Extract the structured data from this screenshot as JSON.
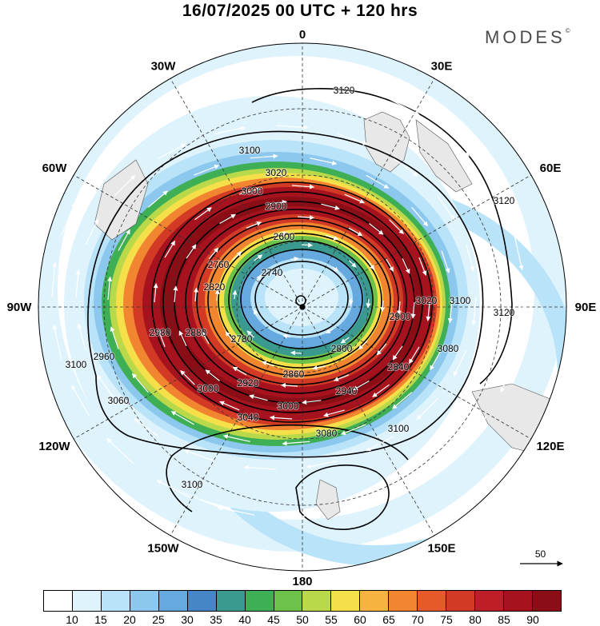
{
  "title": "16/07/2025  00 UTC  + 120 hrs",
  "brand": "MODES",
  "brand_mark": "©",
  "longitude_labels": [
    {
      "text": "0",
      "lon": 0
    },
    {
      "text": "30E",
      "lon": 30
    },
    {
      "text": "60E",
      "lon": 60
    },
    {
      "text": "90E",
      "lon": 90
    },
    {
      "text": "120E",
      "lon": 120
    },
    {
      "text": "150E",
      "lon": 150
    },
    {
      "text": "180",
      "lon": 180
    },
    {
      "text": "150W",
      "lon": -150
    },
    {
      "text": "120W",
      "lon": -120
    },
    {
      "text": "90W",
      "lon": -90
    },
    {
      "text": "60W",
      "lon": -60
    },
    {
      "text": "30W",
      "lon": -30
    }
  ],
  "contour_labels": [
    "3120",
    "3100",
    "3080",
    "3060",
    "3040",
    "3020",
    "3000",
    "2980",
    "2960",
    "2940",
    "2920",
    "2900",
    "2880",
    "2860",
    "2840",
    "2820",
    "2800",
    "2780",
    "2760",
    "2740",
    "2600"
  ],
  "colorbar": {
    "ticks": [
      "10",
      "15",
      "20",
      "25",
      "30",
      "35",
      "40",
      "45",
      "50",
      "55",
      "60",
      "65",
      "70",
      "75",
      "80",
      "85",
      "90"
    ],
    "colors": [
      "#ffffff",
      "#dff3fd",
      "#b9e3f8",
      "#8cc8ee",
      "#65a9df",
      "#4686c7",
      "#3a9a90",
      "#3faf55",
      "#6dc24a",
      "#b9d94a",
      "#f6e04a",
      "#f7b33f",
      "#f28530",
      "#e65a2a",
      "#d33a26",
      "#bf1e26",
      "#a6131e",
      "#8b0e17"
    ]
  },
  "reference_vector": {
    "label": "50"
  }
}
